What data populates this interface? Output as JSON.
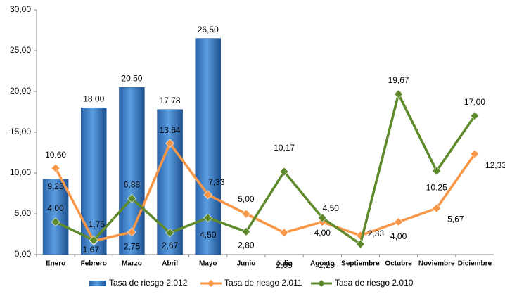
{
  "chart_data": {
    "type": "bar-line",
    "categories": [
      "Enero",
      "Febrero",
      "Marzo",
      "Abril",
      "Mayo",
      "Junio",
      "Julio",
      "Agosto",
      "Septiembre",
      "Octubre",
      "Noviembre",
      "Diciembre"
    ],
    "series": [
      {
        "name": "Tasa de riesgo 2.012",
        "type": "bar",
        "color": "#2e75c9",
        "values": [
          9.25,
          18.0,
          20.5,
          17.78,
          26.5,
          null,
          null,
          null,
          null,
          null,
          null,
          null
        ],
        "value_labels": [
          "9,25",
          "18,00",
          "20,50",
          "17,78",
          "26,50",
          null,
          null,
          null,
          null,
          null,
          null,
          null
        ]
      },
      {
        "name": "Tasa de riesgo 2.011",
        "type": "line",
        "color": "#f79646",
        "values": [
          10.6,
          1.67,
          2.75,
          13.64,
          7.33,
          5.0,
          2.69,
          4.0,
          2.33,
          4.0,
          5.67,
          12.33
        ],
        "value_labels": [
          "10,60",
          "1,67",
          "2,75",
          "13,64",
          "7,33",
          "5,00",
          "2,69",
          "4,00",
          "2,33",
          "4,00",
          "5,67",
          "12,33"
        ]
      },
      {
        "name": "Tasa de riesgo 2.010",
        "type": "line",
        "color": "#5e8a2c",
        "values": [
          4.0,
          1.75,
          6.88,
          2.67,
          4.5,
          2.8,
          10.17,
          4.5,
          1.29,
          19.67,
          10.25,
          17.0
        ],
        "value_labels": [
          "4,00",
          "1,75",
          "6,88",
          "2,67",
          "4,50",
          "2,80",
          "10,17",
          "4,50",
          "1,29",
          "19,67",
          "10,25",
          "17,00"
        ]
      }
    ],
    "ylim": [
      0,
      30
    ],
    "yticks": [
      {
        "value": 0,
        "label": "0,00"
      },
      {
        "value": 5,
        "label": "5,00"
      },
      {
        "value": 10,
        "label": "10,00"
      },
      {
        "value": 15,
        "label": "15,00"
      },
      {
        "value": 20,
        "label": "20,00"
      },
      {
        "value": 25,
        "label": "25,00"
      },
      {
        "value": 30,
        "label": "30,00"
      }
    ],
    "legend": "bottom"
  }
}
